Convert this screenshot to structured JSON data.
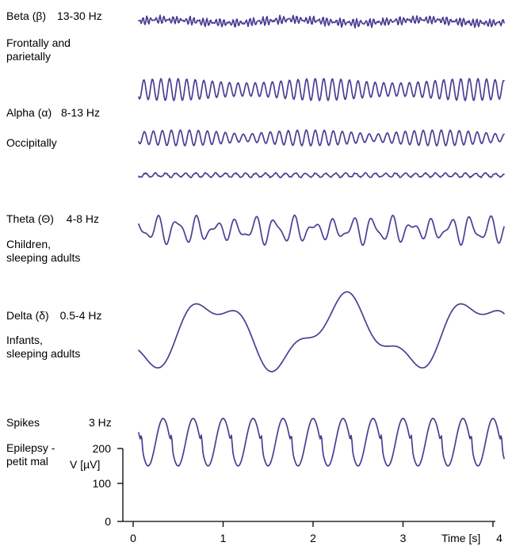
{
  "chart_data": {
    "type": "line",
    "x_unit_seconds": [
      0,
      4
    ],
    "rows": [
      {
        "name": "Beta",
        "label": "Beta (β)",
        "freq": "13-30 Hz",
        "location": "Frontally and\nparietally"
      },
      {
        "name": "Alpha",
        "label": "Alpha (α)",
        "freq": "8-13 Hz",
        "location": "Occipitally"
      },
      {
        "name": "Theta",
        "label": "Theta (Θ)",
        "freq": "4-8 Hz",
        "location": "Children,\nsleeping adults"
      },
      {
        "name": "Delta",
        "label": "Delta (δ)",
        "freq": "0.5-4 Hz",
        "location": "Infants,\nsleeping adults"
      },
      {
        "name": "Spikes",
        "label": "Spikes",
        "freq": "3 Hz",
        "location": "Epilepsy -\npetit mal"
      }
    ],
    "xaxis": {
      "ticks": [
        "0",
        "1",
        "2",
        "3",
        "4"
      ],
      "label": "Time [s]",
      "range": [
        0,
        4.2
      ]
    },
    "yaxis": {
      "ticks": [
        "0",
        "100",
        "200"
      ],
      "label": "V [µV]",
      "range": [
        0,
        200
      ]
    }
  }
}
